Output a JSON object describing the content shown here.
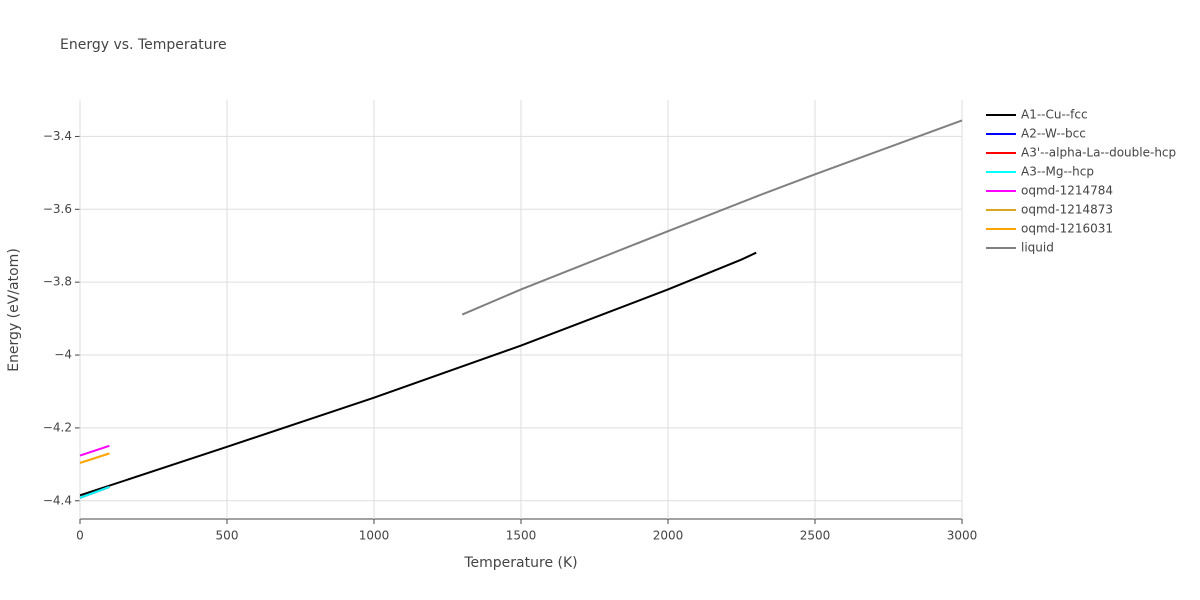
{
  "chart_data": {
    "type": "line",
    "title": "Energy vs. Temperature",
    "x_label": "Temperature (K)",
    "y_label": "Energy (eV/atom)",
    "xlim": [
      0,
      3000
    ],
    "ylim": [
      -4.45,
      -3.3
    ],
    "xticks": [
      0,
      500,
      1000,
      1500,
      2000,
      2500,
      3000
    ],
    "yticks": [
      {
        "value": -4.4,
        "label": "−4.4"
      },
      {
        "value": -4.2,
        "label": "−4.2"
      },
      {
        "value": -4,
        "label": "−4"
      },
      {
        "value": -3.8,
        "label": "−3.8"
      },
      {
        "value": -3.6,
        "label": "−3.6"
      },
      {
        "value": -3.4,
        "label": "−3.4"
      }
    ],
    "grid": true,
    "legend": "right",
    "series": [
      {
        "name": "A1--Cu--fcc",
        "color": "#000000",
        "x": [
          0,
          500,
          1000,
          1500,
          2000,
          2250,
          2300
        ],
        "values": [
          -4.385,
          -4.252,
          -4.117,
          -3.974,
          -3.82,
          -3.738,
          -3.719
        ]
      },
      {
        "name": "A2--W--bcc",
        "color": "#0000ff",
        "x": [
          0,
          100
        ],
        "values": [
          -4.392,
          -4.362
        ]
      },
      {
        "name": "A3'--alpha-La--double-hcp",
        "color": "#ff0000",
        "x": [
          0,
          100
        ],
        "values": [
          -4.392,
          -4.362
        ]
      },
      {
        "name": "A3--Mg--hcp",
        "color": "#00ffff",
        "x": [
          0,
          100
        ],
        "values": [
          -4.392,
          -4.362
        ]
      },
      {
        "name": "oqmd-1214784",
        "color": "#ff00ff",
        "x": [
          0,
          100
        ],
        "values": [
          -4.276,
          -4.249
        ]
      },
      {
        "name": "oqmd-1214873",
        "color": "#daa520",
        "x": [
          0,
          100
        ],
        "values": [
          -4.296,
          -4.27
        ]
      },
      {
        "name": "oqmd-1216031",
        "color": "#ffa500",
        "x": [
          0,
          100
        ],
        "values": [
          -4.296,
          -4.27
        ]
      },
      {
        "name": "liquid",
        "color": "#808080",
        "x": [
          1300,
          1500,
          2000,
          2300,
          2500,
          3000
        ],
        "values": [
          -3.889,
          -3.82,
          -3.66,
          -3.565,
          -3.504,
          -3.356
        ]
      }
    ]
  }
}
